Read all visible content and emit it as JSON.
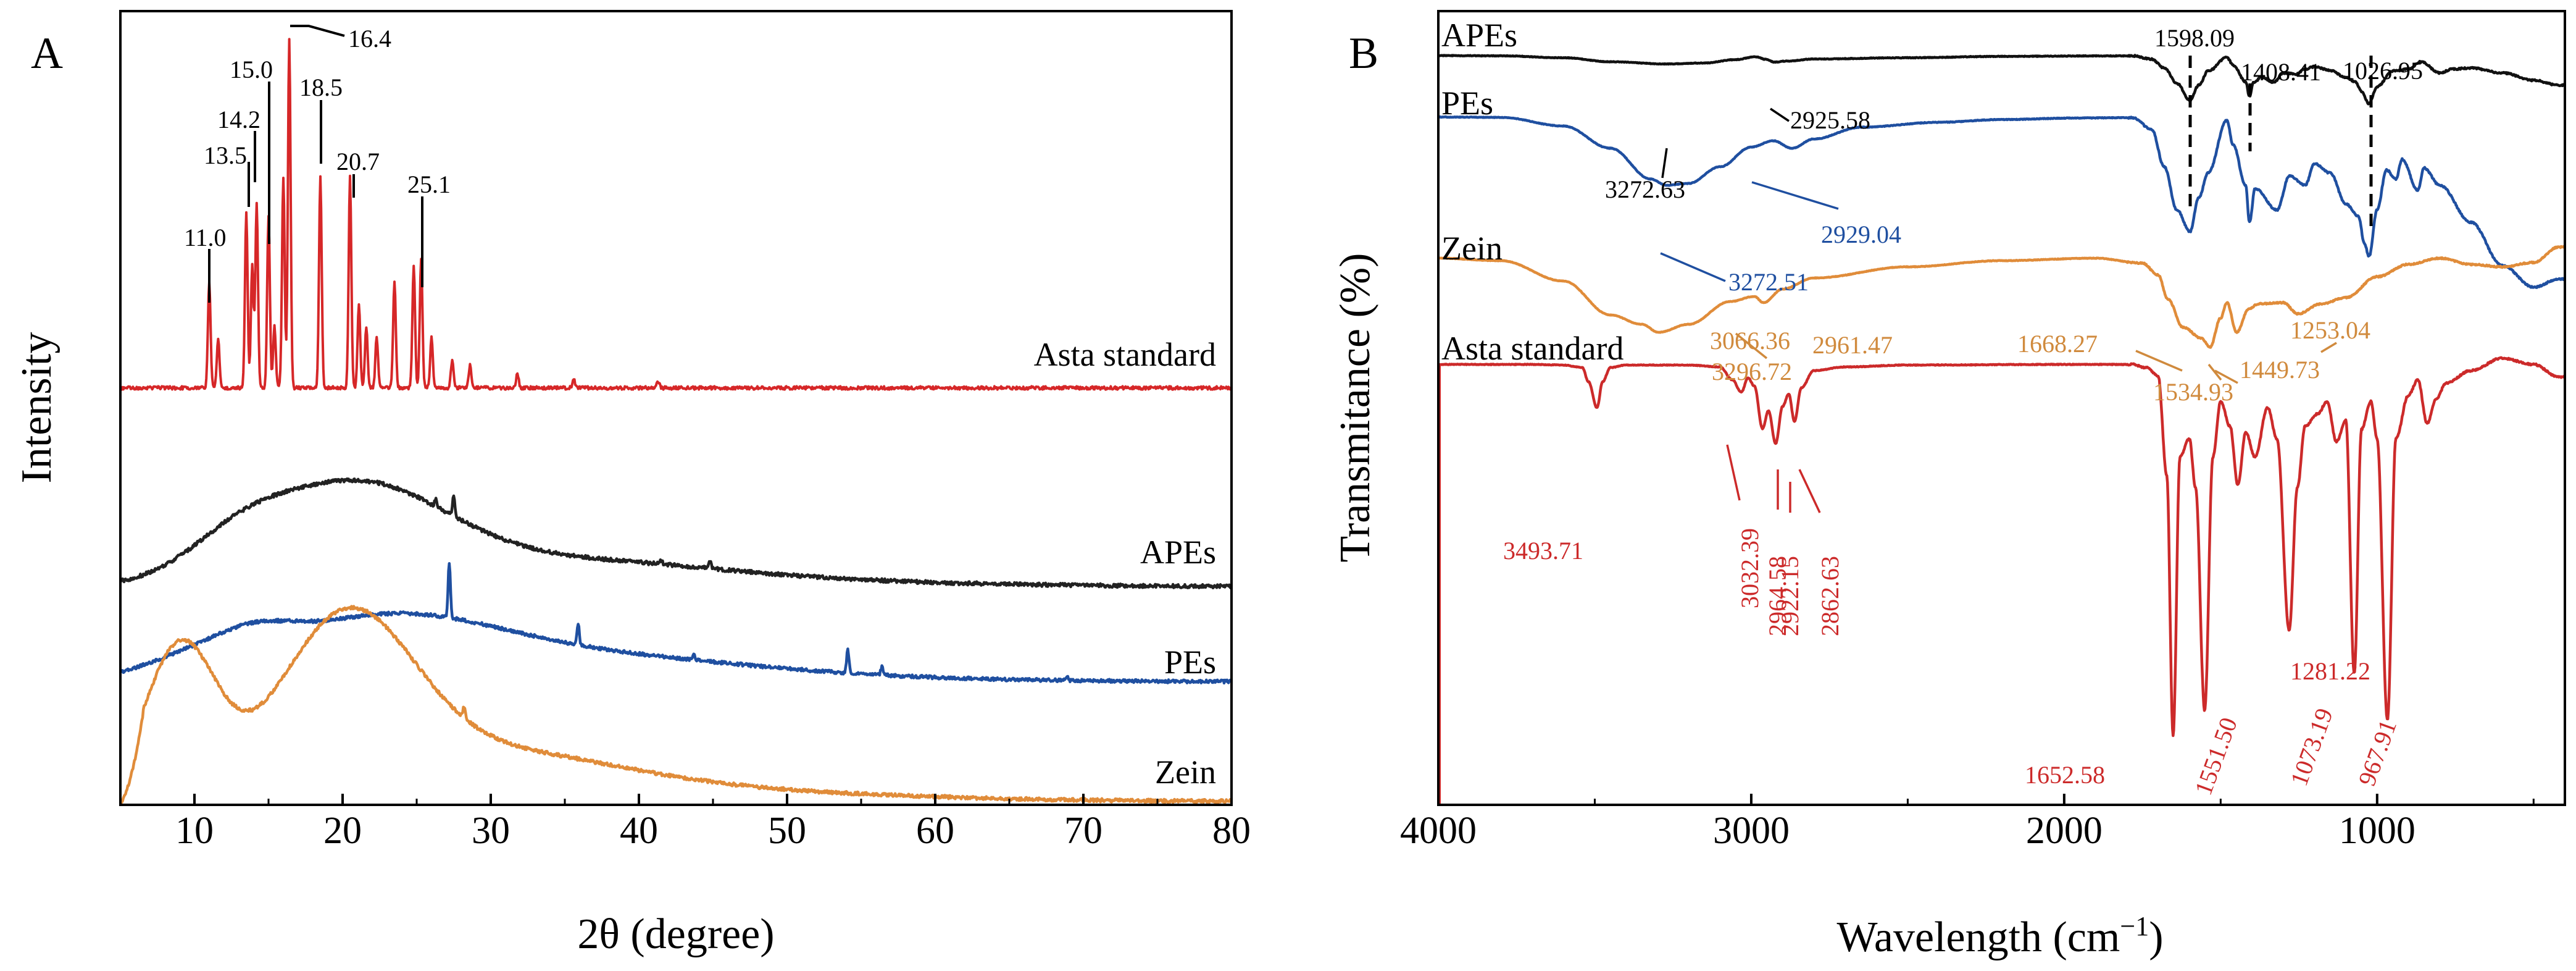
{
  "chart_data": [
    {
      "panel": "A",
      "type": "line",
      "xlabel": "2θ (degree)",
      "ylabel": "Intensity",
      "xlim": [
        5,
        80
      ],
      "xticks": [
        10,
        20,
        30,
        40,
        50,
        60,
        70,
        80
      ],
      "y_tick_labels": false,
      "series": [
        {
          "name": "Asta standard",
          "color": "#d62728",
          "baseline": 0.0,
          "noise": 0.06,
          "sharp_peaks": true,
          "components": [],
          "peaks": [
            [
              11.0,
              1.9
            ],
            [
              11.6,
              0.9
            ],
            [
              13.5,
              3.15
            ],
            [
              13.9,
              2.2
            ],
            [
              14.2,
              3.3
            ],
            [
              15.0,
              3.1
            ],
            [
              15.4,
              1.1
            ],
            [
              16.0,
              3.8
            ],
            [
              16.4,
              6.3
            ],
            [
              18.5,
              3.8
            ],
            [
              20.5,
              3.8
            ],
            [
              21.1,
              1.5
            ],
            [
              21.6,
              1.1
            ],
            [
              22.3,
              0.9
            ],
            [
              23.5,
              1.9
            ],
            [
              24.8,
              2.2
            ],
            [
              25.3,
              2.3
            ],
            [
              26.0,
              0.9
            ],
            [
              27.4,
              0.5
            ],
            [
              28.6,
              0.4
            ],
            [
              31.8,
              0.25
            ],
            [
              35.6,
              0.15
            ],
            [
              41.3,
              0.12
            ]
          ]
        },
        {
          "name": "APEs",
          "color": "#222222",
          "baseline": 0.2,
          "noise": 0.09,
          "components": [
            [
              20.8,
              6.0,
              3.6
            ],
            [
              13.0,
              3.5,
              1.2
            ],
            [
              34,
              10,
              0.9
            ],
            [
              48,
              13,
              0.2
            ]
          ],
          "peaks": [
            [
              27.5,
              0.8
            ],
            [
              26.3,
              0.3
            ],
            [
              41.5,
              0.18
            ],
            [
              44.8,
              0.28
            ]
          ]
        },
        {
          "name": "PEs",
          "color": "#1f4fa0",
          "baseline": 0.2,
          "noise": 0.08,
          "components": [
            [
              22.5,
              7.5,
              2.1
            ],
            [
              13.8,
              2.8,
              0.9
            ],
            [
              9.0,
              3,
              0.5
            ],
            [
              35,
              11,
              0.9
            ],
            [
              48,
              13,
              0.15
            ]
          ],
          "peaks": [
            [
              27.2,
              2.1
            ],
            [
              35.9,
              0.8
            ],
            [
              54.1,
              0.9
            ],
            [
              43.7,
              0.18
            ],
            [
              56.4,
              0.3
            ],
            [
              68.9,
              0.12
            ]
          ]
        },
        {
          "name": "Zein",
          "color": "#e08c3a",
          "baseline": 0.1,
          "noise": 0.08,
          "components": [
            [
              9.0,
              2.4,
              5.5
            ],
            [
              20.2,
              4.5,
              6.0
            ],
            [
              29,
              9,
              1.6
            ],
            [
              42,
              14,
              0.4
            ]
          ],
          "peaks": [
            [
              28.2,
              0.4
            ]
          ]
        }
      ],
      "peak_labels": [
        "11.0",
        "13.5",
        "14.2",
        "15.0",
        "16.4",
        "18.5",
        "20.7",
        "25.1"
      ]
    },
    {
      "panel": "B",
      "type": "line",
      "xlabel": "Wavelength (cm",
      "xlabel_sup": "−1",
      "xlabel_end": ")",
      "ylabel": "Transmitance (%)",
      "xlim": [
        4000,
        400
      ],
      "xticks": [
        4000,
        3000,
        2000,
        1000
      ],
      "y_tick_labels": false,
      "series": [
        {
          "name": "APEs",
          "color": "#111111",
          "offset": 0,
          "noise": 0.45,
          "anchors": [
            [
              4000,
              0
            ],
            [
              3800,
              0.4
            ],
            [
              3600,
              3.5
            ],
            [
              3450,
              10
            ],
            [
              3272,
              13.5
            ],
            [
              3150,
              12
            ],
            [
              3050,
              6.5
            ],
            [
              2985,
              2.0
            ],
            [
              2955,
              6
            ],
            [
              2925,
              10.5
            ],
            [
              2890,
              9
            ],
            [
              2800,
              5.5
            ],
            [
              2500,
              3.5
            ],
            [
              2200,
              1.3
            ],
            [
              1900,
              0.5
            ],
            [
              1780,
              0.4
            ],
            [
              1720,
              6
            ],
            [
              1680,
              20
            ],
            [
              1640,
              45
            ],
            [
              1598,
              72
            ],
            [
              1570,
              48
            ],
            [
              1540,
              25
            ],
            [
              1480,
              3
            ],
            [
              1460,
              16
            ],
            [
              1420,
              42
            ],
            [
              1408,
              66
            ],
            [
              1395,
              44
            ],
            [
              1370,
              35
            ],
            [
              1330,
              43
            ],
            [
              1300,
              28
            ],
            [
              1260,
              30
            ],
            [
              1230,
              22
            ],
            [
              1200,
              18
            ],
            [
              1150,
              24
            ],
            [
              1100,
              35
            ],
            [
              1070,
              42
            ],
            [
              1050,
              58
            ],
            [
              1026,
              78
            ],
            [
              1000,
              50
            ],
            [
              950,
              25
            ],
            [
              900,
              22
            ],
            [
              860,
              10
            ],
            [
              800,
              28
            ],
            [
              760,
              22
            ],
            [
              700,
              20
            ],
            [
              600,
              28
            ],
            [
              500,
              40
            ],
            [
              420,
              48
            ]
          ]
        },
        {
          "name": "PEs",
          "color": "#1f4fa0",
          "offset": 52,
          "noise": 0.45,
          "anchors": [
            [
              4000,
              -0.5
            ],
            [
              3800,
              0
            ],
            [
              3600,
              14
            ],
            [
              3450,
              50
            ],
            [
              3320,
              100
            ],
            [
              3272,
              110
            ],
            [
              3200,
              107
            ],
            [
              3100,
              80
            ],
            [
              3000,
              48
            ],
            [
              2929,
              38
            ],
            [
              2870,
              50
            ],
            [
              2800,
              35
            ],
            [
              2650,
              16
            ],
            [
              2400,
              8
            ],
            [
              2200,
              3.5
            ],
            [
              1950,
              1
            ],
            [
              1780,
              0.5
            ],
            [
              1720,
              20
            ],
            [
              1680,
              80
            ],
            [
              1640,
              150
            ],
            [
              1598,
              185
            ],
            [
              1570,
              130
            ],
            [
              1540,
              90
            ],
            [
              1480,
              5
            ],
            [
              1460,
              45
            ],
            [
              1420,
              110
            ],
            [
              1408,
              170
            ],
            [
              1390,
              115
            ],
            [
              1320,
              150
            ],
            [
              1280,
              95
            ],
            [
              1230,
              110
            ],
            [
              1200,
              75
            ],
            [
              1150,
              90
            ],
            [
              1100,
              140
            ],
            [
              1060,
              160
            ],
            [
              1040,
              205
            ],
            [
              1026,
              225
            ],
            [
              1000,
              150
            ],
            [
              970,
              85
            ],
            [
              940,
              100
            ],
            [
              920,
              68
            ],
            [
              870,
              118
            ],
            [
              850,
              82
            ],
            [
              800,
              110
            ],
            [
              700,
              170
            ],
            [
              600,
              240
            ],
            [
              500,
              275
            ],
            [
              420,
              262
            ]
          ]
        },
        {
          "name": "Zein",
          "color": "#e08c3a",
          "offset": 152,
          "noise": 0.38,
          "anchors": [
            [
              4000,
              -2
            ],
            [
              3800,
              2
            ],
            [
              3600,
              35
            ],
            [
              3450,
              90
            ],
            [
              3350,
              105
            ],
            [
              3296,
              118
            ],
            [
              3200,
              105
            ],
            [
              3066,
              68
            ],
            [
              2990,
              60
            ],
            [
              2961,
              70
            ],
            [
              2900,
              48
            ],
            [
              2800,
              30
            ],
            [
              2500,
              12
            ],
            [
              2200,
              2
            ],
            [
              1900,
              -2
            ],
            [
              1750,
              6
            ],
            [
              1700,
              25
            ],
            [
              1668,
              65
            ],
            [
              1620,
              110
            ],
            [
              1560,
              128
            ],
            [
              1534,
              142
            ],
            [
              1500,
              95
            ],
            [
              1480,
              70
            ],
            [
              1449,
              118
            ],
            [
              1410,
              80
            ],
            [
              1380,
              72
            ],
            [
              1300,
              70
            ],
            [
              1253,
              88
            ],
            [
              1180,
              72
            ],
            [
              1100,
              62
            ],
            [
              1000,
              28
            ],
            [
              900,
              8
            ],
            [
              800,
              -2
            ],
            [
              700,
              8
            ],
            [
              600,
              12
            ],
            [
              500,
              5
            ],
            [
              420,
              -20
            ]
          ]
        },
        {
          "name": "Asta standard",
          "color": "#cc2a2a",
          "offset": 292,
          "noise": 0.5,
          "anchors": [
            [
              4000,
              0
            ],
            [
              3700,
              0
            ],
            [
              3600,
              1
            ],
            [
              3540,
              5
            ],
            [
              3520,
              28
            ],
            [
              3493,
              70
            ],
            [
              3475,
              28
            ],
            [
              3450,
              5
            ],
            [
              3400,
              1
            ],
            [
              3200,
              1
            ],
            [
              3100,
              4
            ],
            [
              3060,
              25
            ],
            [
              3032,
              45
            ],
            [
              3010,
              22
            ],
            [
              2990,
              35
            ],
            [
              2964,
              104
            ],
            [
              2945,
              75
            ],
            [
              2922,
              128
            ],
            [
              2900,
              68
            ],
            [
              2880,
              48
            ],
            [
              2862,
              92
            ],
            [
              2840,
              38
            ],
            [
              2800,
              10
            ],
            [
              2700,
              4
            ],
            [
              2500,
              1
            ],
            [
              2000,
              0
            ],
            [
              1780,
              0
            ],
            [
              1740,
              5
            ],
            [
              1700,
              18
            ],
            [
              1672,
              180
            ],
            [
              1652,
              600
            ],
            [
              1630,
              150
            ],
            [
              1600,
              120
            ],
            [
              1580,
              200
            ],
            [
              1551,
              560
            ],
            [
              1525,
              150
            ],
            [
              1500,
              60
            ],
            [
              1470,
              100
            ],
            [
              1445,
              195
            ],
            [
              1420,
              110
            ],
            [
              1390,
              150
            ],
            [
              1350,
              70
            ],
            [
              1320,
              120
            ],
            [
              1281,
              430
            ],
            [
              1255,
              200
            ],
            [
              1230,
              100
            ],
            [
              1190,
              80
            ],
            [
              1160,
              60
            ],
            [
              1130,
              125
            ],
            [
              1100,
              90
            ],
            [
              1073,
              500
            ],
            [
              1050,
              105
            ],
            [
              1020,
              60
            ],
            [
              1000,
              120
            ],
            [
              967,
              575
            ],
            [
              940,
              120
            ],
            [
              900,
              50
            ],
            [
              870,
              25
            ],
            [
              840,
              95
            ],
            [
              810,
              55
            ],
            [
              780,
              30
            ],
            [
              700,
              10
            ],
            [
              600,
              -10
            ],
            [
              500,
              0
            ],
            [
              420,
              20
            ]
          ]
        }
      ],
      "annotations": [
        "1598.09",
        "1408.41",
        "1026.95",
        "2925.58",
        "3272.63",
        "2929.04",
        "3272.51",
        "3066.36",
        "3296.72",
        "2961.47",
        "1668.27",
        "1534.93",
        "1449.73",
        "1253.04",
        "3493.71",
        "3032.39",
        "2964.58",
        "2922.15",
        "2862.63",
        "1652.58",
        "1551.50",
        "1281.22",
        "1073.19",
        "967.91"
      ]
    }
  ],
  "panels": [
    {
      "letter": "A",
      "series_labels": [
        "Asta standard",
        "APEs",
        "PEs",
        "Zein"
      ]
    },
    {
      "letter": "B",
      "series_labels": [
        "APEs",
        "PEs",
        "Zein",
        "Asta standard"
      ]
    }
  ],
  "colors": {
    "axis": "#000000",
    "asta_A": "#d62728",
    "apes": "#111111",
    "pes": "#1f4fa0",
    "zein": "#e08c3a",
    "asta_B": "#cc2a2a"
  }
}
